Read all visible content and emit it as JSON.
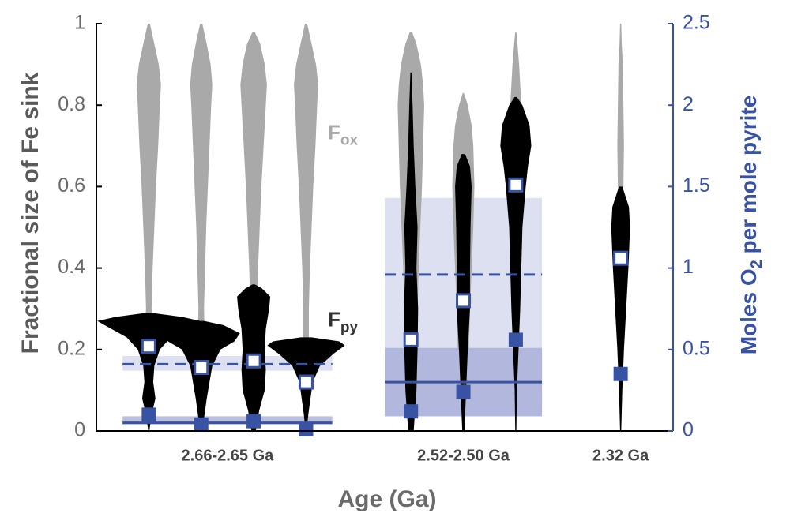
{
  "chart_data": {
    "type": "violin",
    "ylabel": "Fractional size of Fe sink",
    "y2label": {
      "main": "Moles O",
      "sub": "2",
      "rest": " per mole pyrite"
    },
    "xlabel": "Age (Ga)",
    "ylim": [
      0,
      1
    ],
    "yticks": [
      0,
      0.2,
      0.4,
      0.6,
      0.8,
      1
    ],
    "y2lim": [
      0,
      2.5
    ],
    "y2ticks": [
      0,
      0.5,
      1,
      1.5,
      2,
      2.5
    ],
    "fox_color": "#a9a9a9",
    "fpy_color": "#000000",
    "o2_color": "#3953a4",
    "band_color": "#dde0f0",
    "band_dark_color": "#a7add8",
    "annotations": [
      {
        "main": "F",
        "sub": "ox",
        "y": 0.73,
        "color": "#a9a9a9"
      },
      {
        "main": "F",
        "sub": "py",
        "y": 0.27,
        "color": "#333333"
      }
    ],
    "groups": [
      {
        "label": "2.66-2.65 Ga",
        "dashed": 0.41,
        "dashed_band": [
          0.37,
          0.46
        ],
        "solid": 0.05,
        "solid_band": [
          0.04,
          0.09
        ],
        "samples": [
          {
            "fox": {
              "y": [
                0.25,
                0.3,
                0.4,
                0.5,
                0.6,
                0.7,
                0.8,
                0.85,
                0.9,
                0.95,
                1.0
              ],
              "w": [
                0.08,
                0.05,
                0.07,
                0.1,
                0.13,
                0.17,
                0.2,
                0.22,
                0.18,
                0.1,
                0.02
              ]
            },
            "fpy": {
              "y": [
                0,
                0.04,
                0.08,
                0.12,
                0.16,
                0.2,
                0.23,
                0.26,
                0.27,
                0.28,
                0.29
              ],
              "w": [
                0.01,
                0.05,
                0.12,
                0.08,
                0.1,
                0.2,
                0.4,
                0.8,
                0.93,
                0.6,
                0.05
              ]
            },
            "open": 0.52,
            "filled": 0.1
          },
          {
            "fox": {
              "y": [
                0.25,
                0.3,
                0.4,
                0.5,
                0.6,
                0.7,
                0.8,
                0.85,
                0.9,
                0.95,
                1.0
              ],
              "w": [
                0.06,
                0.05,
                0.07,
                0.09,
                0.12,
                0.15,
                0.18,
                0.2,
                0.17,
                0.1,
                0.02
              ]
            },
            "fpy": {
              "y": [
                0,
                0.04,
                0.08,
                0.12,
                0.16,
                0.2,
                0.22,
                0.24,
                0.26,
                0.27
              ],
              "w": [
                0.02,
                0.06,
                0.1,
                0.15,
                0.2,
                0.35,
                0.6,
                0.7,
                0.4,
                0.05
              ]
            },
            "open": 0.39,
            "filled": 0.04
          },
          {
            "fox": {
              "y": [
                0.3,
                0.4,
                0.5,
                0.6,
                0.7,
                0.8,
                0.85,
                0.9,
                0.95,
                0.98
              ],
              "w": [
                0.06,
                0.08,
                0.11,
                0.14,
                0.18,
                0.22,
                0.24,
                0.2,
                0.12,
                0.02
              ]
            },
            "fpy": {
              "y": [
                0,
                0.05,
                0.1,
                0.15,
                0.2,
                0.25,
                0.3,
                0.33,
                0.35,
                0.36
              ],
              "w": [
                0.04,
                0.1,
                0.2,
                0.22,
                0.2,
                0.22,
                0.28,
                0.3,
                0.15,
                0.02
              ]
            },
            "open": 0.43,
            "filled": 0.06
          },
          {
            "fox": {
              "y": [
                0.2,
                0.3,
                0.4,
                0.5,
                0.6,
                0.7,
                0.8,
                0.85,
                0.9,
                0.95,
                1.0
              ],
              "w": [
                0.05,
                0.05,
                0.07,
                0.1,
                0.13,
                0.17,
                0.2,
                0.22,
                0.18,
                0.1,
                0.02
              ]
            },
            "fpy": {
              "y": [
                0,
                0.04,
                0.08,
                0.12,
                0.16,
                0.19,
                0.21,
                0.22,
                0.23
              ],
              "w": [
                0.01,
                0.04,
                0.08,
                0.12,
                0.25,
                0.5,
                0.7,
                0.6,
                0.1
              ]
            },
            "open": 0.3,
            "filled": 0.01
          }
        ]
      },
      {
        "label": "2.52-2.50 Ga",
        "dashed": 0.96,
        "dashed_band": [
          0.09,
          1.43
        ],
        "solid": 0.3,
        "solid_band": [
          0.09,
          0.51
        ],
        "samples": [
          {
            "fox": {
              "y": [
                0.2,
                0.3,
                0.4,
                0.5,
                0.6,
                0.7,
                0.8,
                0.85,
                0.9,
                0.95,
                0.98
              ],
              "w": [
                0.1,
                0.12,
                0.14,
                0.17,
                0.2,
                0.22,
                0.24,
                0.22,
                0.18,
                0.1,
                0.02
              ]
            },
            "fpy": {
              "y": [
                0,
                0.1,
                0.2,
                0.3,
                0.4,
                0.5,
                0.6,
                0.7,
                0.8,
                0.88
              ],
              "w": [
                0.05,
                0.1,
                0.12,
                0.13,
                0.1,
                0.12,
                0.08,
                0.05,
                0.03,
                0.01
              ]
            },
            "open": 0.56,
            "filled": 0.12
          },
          {
            "fox": {
              "y": [
                0.2,
                0.3,
                0.4,
                0.5,
                0.6,
                0.7,
                0.75,
                0.8,
                0.83
              ],
              "w": [
                0.1,
                0.12,
                0.15,
                0.18,
                0.2,
                0.18,
                0.15,
                0.08,
                0.01
              ]
            },
            "fpy": {
              "y": [
                0,
                0.1,
                0.2,
                0.3,
                0.4,
                0.5,
                0.6,
                0.65,
                0.68
              ],
              "w": [
                0.02,
                0.05,
                0.08,
                0.12,
                0.12,
                0.13,
                0.15,
                0.12,
                0.03
              ]
            },
            "open": 0.8,
            "filled": 0.24
          },
          {
            "fox": {
              "y": [
                0.3,
                0.4,
                0.5,
                0.6,
                0.7,
                0.8,
                0.9,
                0.95,
                0.98
              ],
              "w": [
                0.05,
                0.06,
                0.08,
                0.1,
                0.12,
                0.1,
                0.06,
                0.03,
                0.01
              ]
            },
            "fpy": {
              "y": [
                0,
                0.1,
                0.2,
                0.3,
                0.4,
                0.5,
                0.55,
                0.6,
                0.65,
                0.7,
                0.75,
                0.8,
                0.82
              ],
              "w": [
                0.01,
                0.02,
                0.05,
                0.08,
                0.1,
                0.12,
                0.15,
                0.18,
                0.22,
                0.28,
                0.25,
                0.12,
                0.02
              ]
            },
            "open": 1.51,
            "filled": 0.56
          }
        ]
      },
      {
        "label": "2.32 Ga",
        "samples": [
          {
            "fox": {
              "y": [
                0.5,
                0.6,
                0.7,
                0.8,
                0.9,
                0.95,
                1.0
              ],
              "w": [
                0.04,
                0.05,
                0.06,
                0.05,
                0.04,
                0.02,
                0.01
              ]
            },
            "fpy": {
              "y": [
                0,
                0.1,
                0.2,
                0.3,
                0.4,
                0.5,
                0.55,
                0.6
              ],
              "w": [
                0.01,
                0.03,
                0.06,
                0.1,
                0.14,
                0.17,
                0.15,
                0.03
              ]
            },
            "open": 1.06,
            "filled": 0.35
          }
        ]
      }
    ]
  }
}
